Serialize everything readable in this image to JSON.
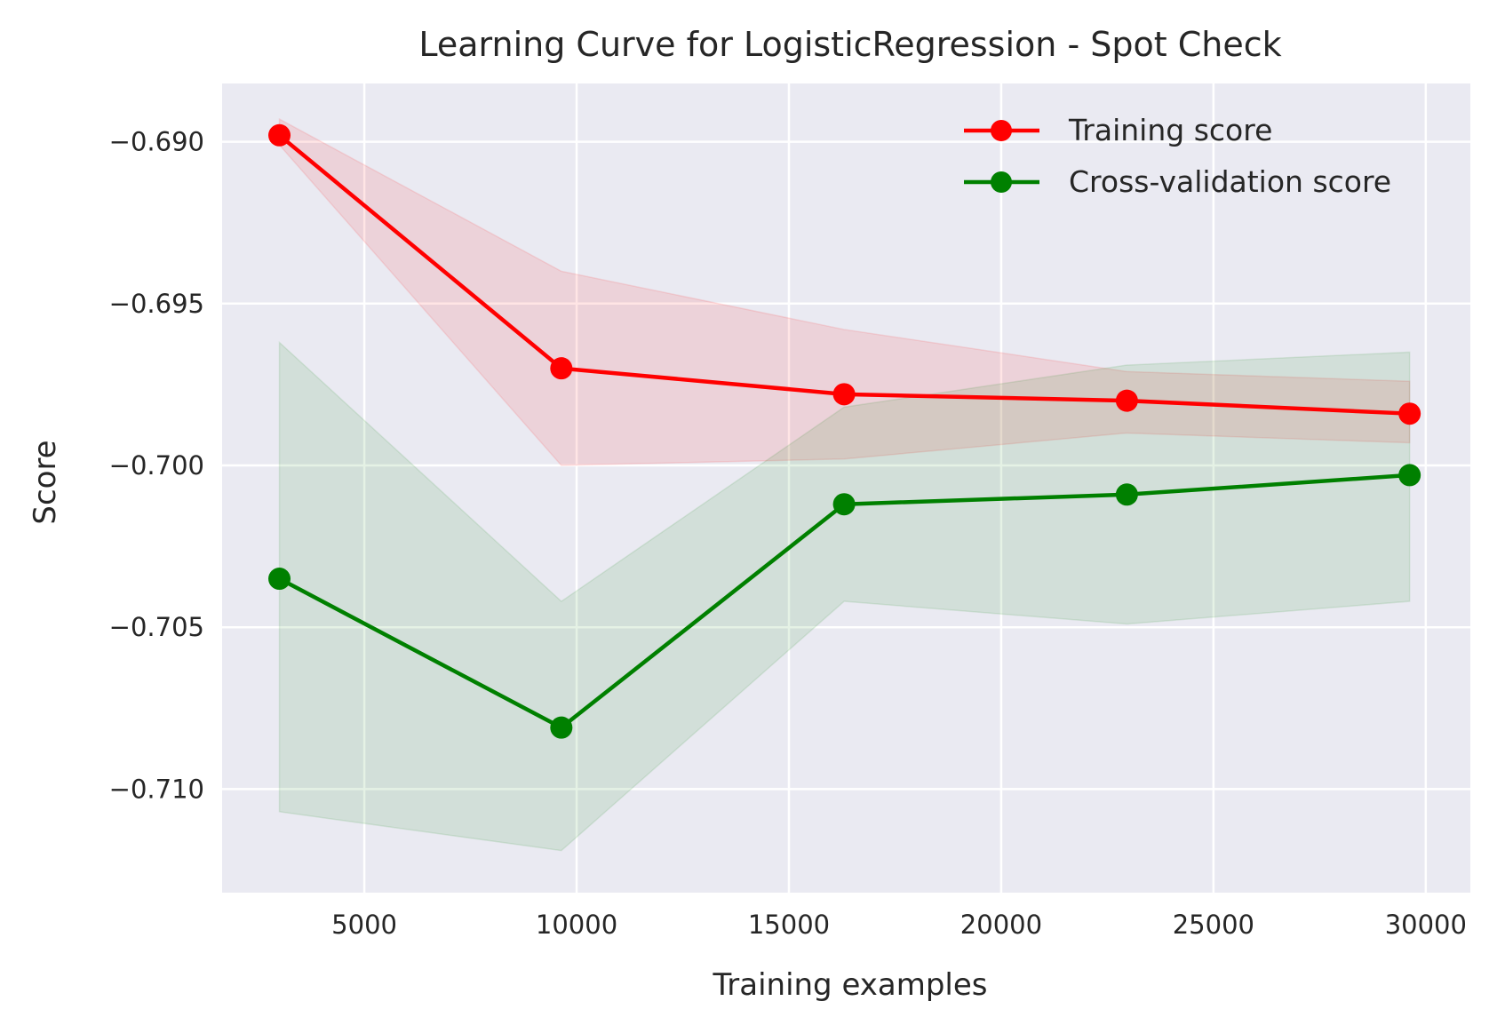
{
  "chart_data": {
    "type": "line",
    "title": "Learning Curve for LogisticRegression - Spot Check",
    "xlabel": "Training examples",
    "ylabel": "Score",
    "xlim": [
      1650,
      31050
    ],
    "ylim": [
      -0.7132,
      -0.6882
    ],
    "xticks": [
      5000,
      10000,
      15000,
      20000,
      25000,
      30000
    ],
    "xtick_labels": [
      "5000",
      "10000",
      "15000",
      "20000",
      "25000",
      "30000"
    ],
    "yticks": [
      -0.69,
      -0.695,
      -0.7,
      -0.705,
      -0.71
    ],
    "ytick_labels": [
      "−0.690",
      "−0.695",
      "−0.700",
      "−0.705",
      "−0.710"
    ],
    "grid": true,
    "legend_position": "top-right",
    "background": "#eaeaf2",
    "x": [
      3000,
      9640,
      16300,
      22960,
      29620
    ],
    "series": [
      {
        "name": "Training score",
        "color": "#ff0000",
        "values": [
          -0.6898,
          -0.697,
          -0.6978,
          -0.698,
          -0.6984
        ],
        "band_upper": [
          -0.6893,
          -0.694,
          -0.6958,
          -0.6971,
          -0.6974
        ],
        "band_lower": [
          -0.6901,
          -0.7,
          -0.6998,
          -0.699,
          -0.6993
        ]
      },
      {
        "name": "Cross-validation score",
        "color": "#008000",
        "values": [
          -0.7035,
          -0.7081,
          -0.7012,
          -0.7009,
          -0.7003
        ],
        "band_upper": [
          -0.6962,
          -0.7042,
          -0.6982,
          -0.6969,
          -0.6965
        ],
        "band_lower": [
          -0.7107,
          -0.7119,
          -0.7042,
          -0.7049,
          -0.7042
        ]
      }
    ]
  }
}
